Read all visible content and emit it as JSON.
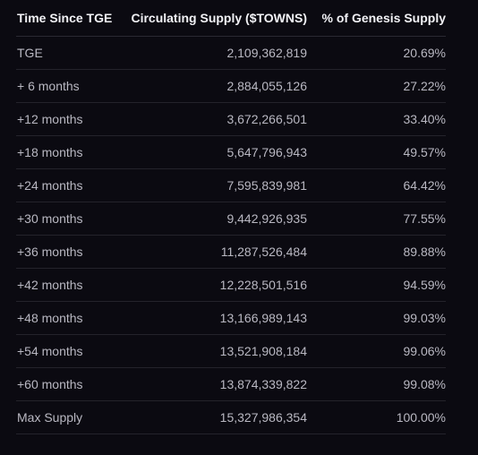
{
  "table": {
    "headers": [
      "Time Since TGE",
      "Circulating Supply ($TOWNS)",
      "% of Genesis Supply"
    ],
    "rows": [
      [
        "TGE",
        "2,109,362,819",
        "20.69%"
      ],
      [
        "+ 6 months",
        "2,884,055,126",
        "27.22%"
      ],
      [
        "+12 months",
        "3,672,266,501",
        "33.40%"
      ],
      [
        "+18 months",
        "5,647,796,943",
        "49.57%"
      ],
      [
        "+24 months",
        "7,595,839,981",
        "64.42%"
      ],
      [
        "+30 months",
        "9,442,926,935",
        "77.55%"
      ],
      [
        "+36 months",
        "11,287,526,484",
        "89.88%"
      ],
      [
        "+42 months",
        "12,228,501,516",
        "94.59%"
      ],
      [
        "+48 months",
        "13,166,989,143",
        "99.03%"
      ],
      [
        "+54 months",
        "13,521,908,184",
        "99.06%"
      ],
      [
        "+60 months",
        "13,874,339,822",
        "99.08%"
      ],
      [
        "Max Supply",
        "15,327,986,354",
        "100.00%"
      ]
    ]
  },
  "colors": {
    "background": "#0b0a11",
    "header_text": "#f2f2f6",
    "cell_text": "#b9b8c2",
    "divider": "#24232b"
  }
}
